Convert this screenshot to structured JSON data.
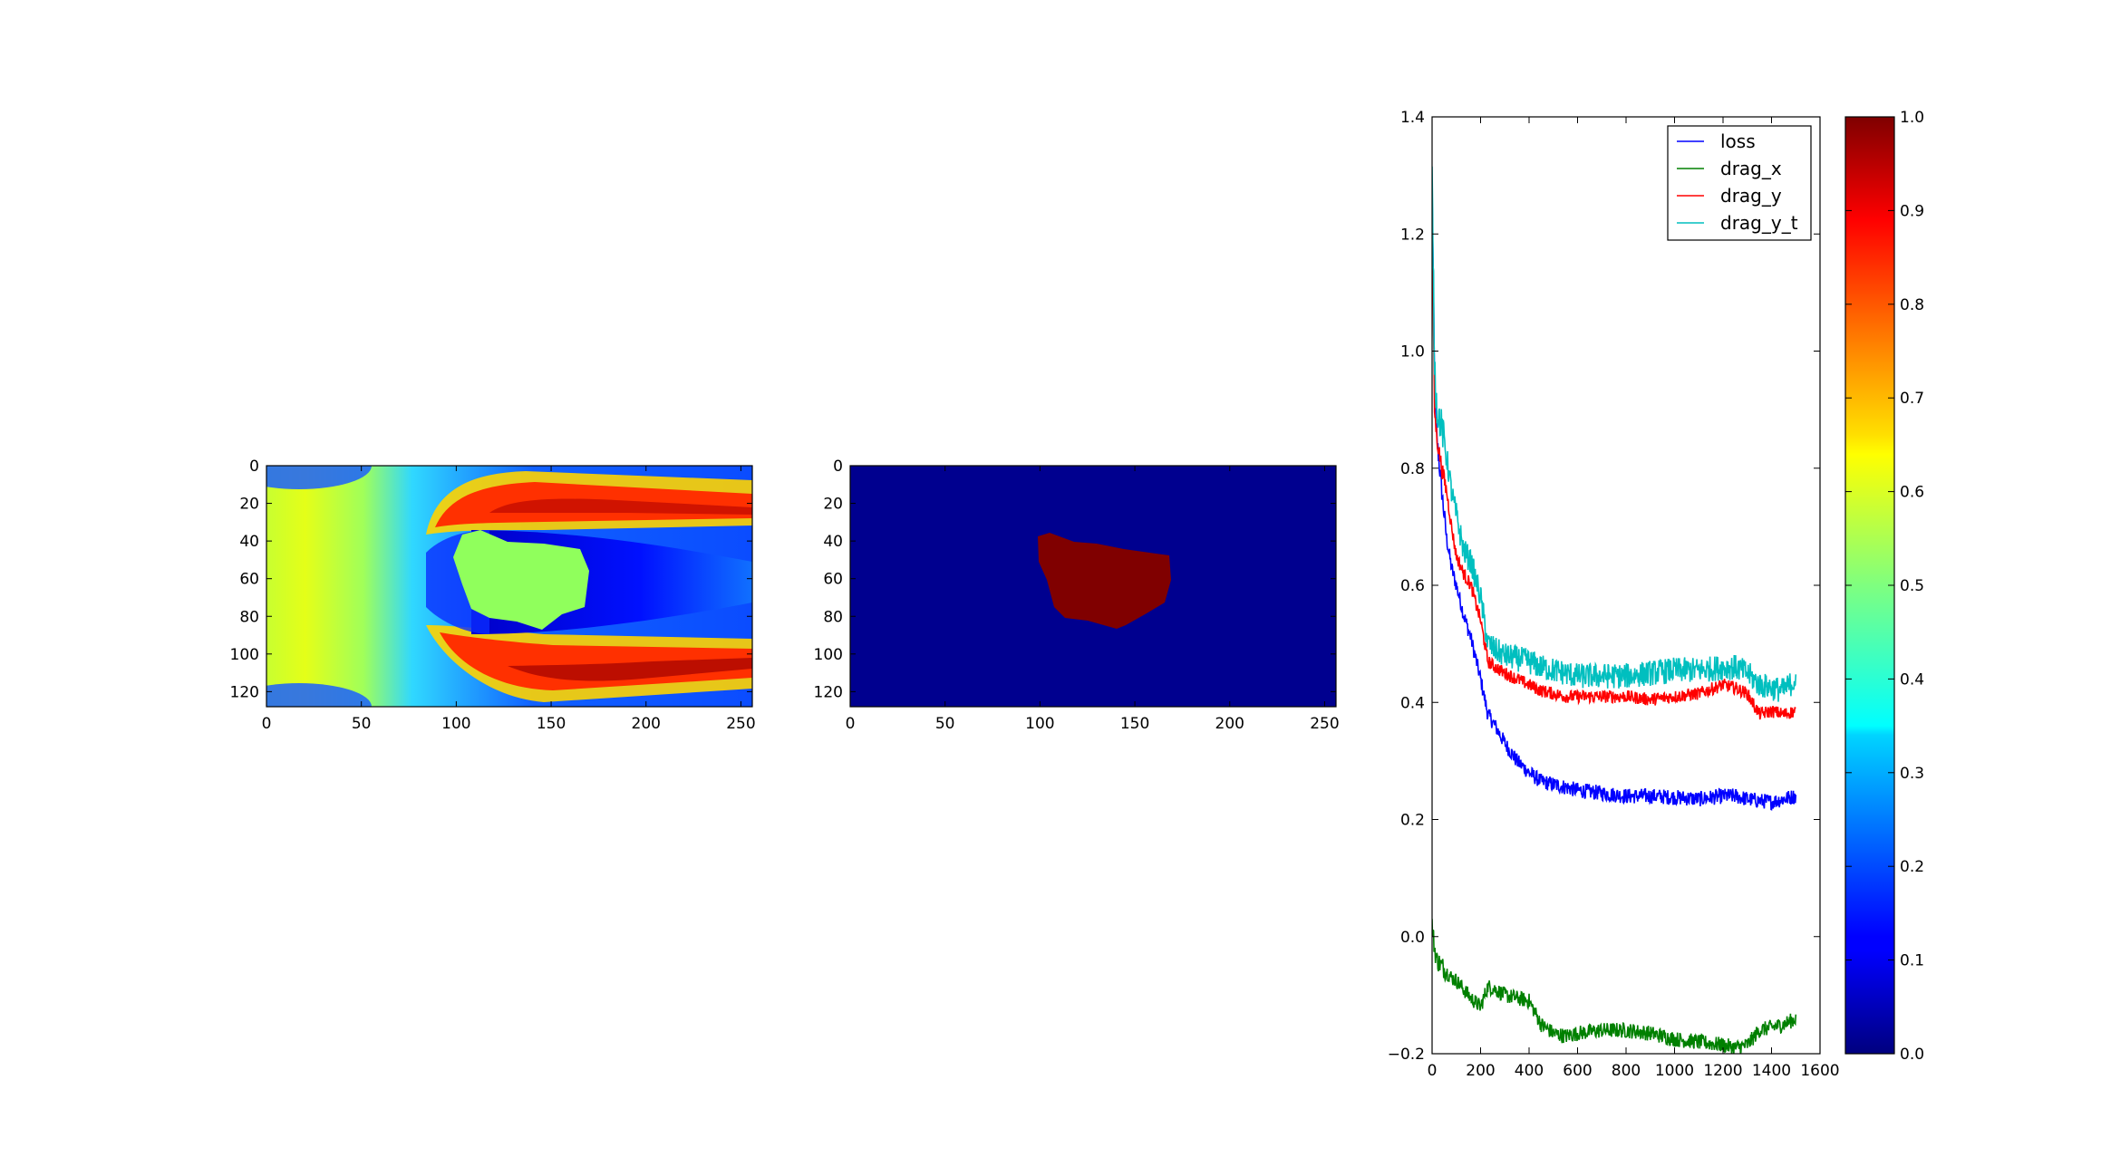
{
  "figure": {
    "panels": [
      {
        "kind": "field-image",
        "colormap": "jet",
        "x_ticks": [
          "0",
          "50",
          "100",
          "150",
          "200",
          "250"
        ],
        "y_ticks": [
          "0",
          "20",
          "40",
          "60",
          "80",
          "100",
          "120"
        ]
      },
      {
        "kind": "mask-image",
        "colormap": "jet",
        "x_ticks": [
          "0",
          "50",
          "100",
          "150",
          "200",
          "250"
        ],
        "y_ticks": [
          "0",
          "20",
          "40",
          "60",
          "80",
          "100",
          "120"
        ]
      }
    ],
    "colorbar": {
      "colormap": "jet",
      "ticks": [
        "0.0",
        "0.1",
        "0.2",
        "0.3",
        "0.4",
        "0.5",
        "0.6",
        "0.7",
        "0.8",
        "0.9",
        "1.0"
      ]
    }
  },
  "chart_data": [
    {
      "type": "heatmap",
      "xlim": [
        0,
        256
      ],
      "ylim": [
        128,
        0
      ],
      "x_ticks": [
        0,
        50,
        100,
        150,
        200,
        250
      ],
      "y_ticks": [
        0,
        20,
        40,
        60,
        80,
        100,
        120
      ],
      "colormap": "jet",
      "obstacle_value": 0.5
    },
    {
      "type": "heatmap",
      "xlim": [
        0,
        256
      ],
      "ylim": [
        128,
        0
      ],
      "x_ticks": [
        0,
        50,
        100,
        150,
        200,
        250
      ],
      "y_ticks": [
        0,
        20,
        40,
        60,
        80,
        100,
        120
      ],
      "colormap": "jet",
      "background_value": 0.0,
      "obstacle_value": 1.0
    },
    {
      "type": "line",
      "xlim": [
        0,
        1600
      ],
      "ylim": [
        -0.2,
        1.4
      ],
      "x_ticks": [
        "0",
        "200",
        "400",
        "600",
        "800",
        "1000",
        "1200",
        "1400",
        "1600"
      ],
      "y_ticks": [
        "−0.2",
        "0.0",
        "0.2",
        "0.4",
        "0.6",
        "0.8",
        "1.0",
        "1.2",
        "1.4"
      ],
      "legend_position": "top-right",
      "x": [
        0,
        10,
        20,
        40,
        60,
        80,
        100,
        130,
        160,
        200,
        230,
        260,
        300,
        350,
        400,
        450,
        500,
        550,
        600,
        700,
        800,
        900,
        1000,
        1100,
        1200,
        1250,
        1300,
        1350,
        1400,
        1450,
        1500
      ],
      "series": [
        {
          "name": "loss",
          "color": "#0000ff",
          "noise": 0.006,
          "values": [
            1.28,
            0.95,
            0.85,
            0.76,
            0.68,
            0.63,
            0.6,
            0.55,
            0.51,
            0.44,
            0.38,
            0.36,
            0.33,
            0.3,
            0.28,
            0.265,
            0.26,
            0.255,
            0.25,
            0.245,
            0.24,
            0.24,
            0.238,
            0.235,
            0.24,
            0.24,
            0.235,
            0.232,
            0.23,
            0.235,
            0.24
          ]
        },
        {
          "name": "drag_x",
          "color": "#008000",
          "noise": 0.006,
          "values": [
            0.02,
            -0.02,
            -0.04,
            -0.05,
            -0.06,
            -0.07,
            -0.075,
            -0.09,
            -0.105,
            -0.12,
            -0.085,
            -0.09,
            -0.1,
            -0.105,
            -0.11,
            -0.15,
            -0.165,
            -0.17,
            -0.165,
            -0.16,
            -0.16,
            -0.165,
            -0.175,
            -0.18,
            -0.185,
            -0.19,
            -0.185,
            -0.16,
            -0.155,
            -0.15,
            -0.14
          ]
        },
        {
          "name": "drag_y",
          "color": "#ff0000",
          "noise": 0.005,
          "values": [
            1.25,
            0.9,
            0.85,
            0.8,
            0.76,
            0.7,
            0.65,
            0.62,
            0.6,
            0.54,
            0.47,
            0.46,
            0.45,
            0.44,
            0.43,
            0.42,
            0.415,
            0.41,
            0.41,
            0.41,
            0.41,
            0.405,
            0.41,
            0.415,
            0.43,
            0.425,
            0.415,
            0.38,
            0.385,
            0.38,
            0.385
          ]
        },
        {
          "name": "drag_y_t",
          "color": "#00bfbf",
          "noise": 0.01,
          "values": [
            1.3,
            0.98,
            0.9,
            0.87,
            0.82,
            0.76,
            0.72,
            0.66,
            0.64,
            0.58,
            0.5,
            0.49,
            0.48,
            0.475,
            0.47,
            0.46,
            0.455,
            0.45,
            0.445,
            0.445,
            0.445,
            0.45,
            0.455,
            0.455,
            0.46,
            0.46,
            0.45,
            0.43,
            0.425,
            0.42,
            0.44
          ]
        }
      ]
    }
  ]
}
